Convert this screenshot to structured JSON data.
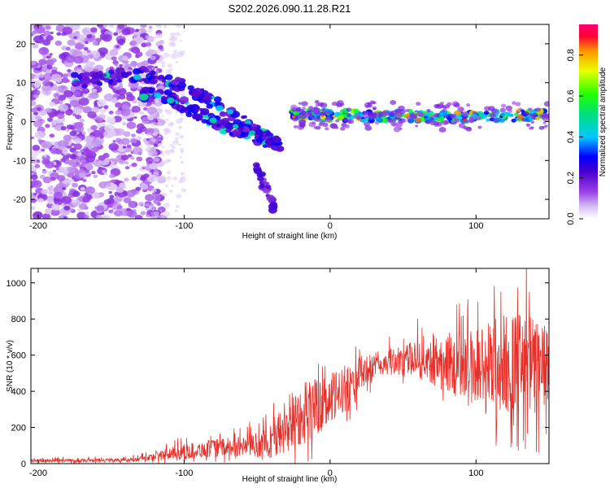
{
  "title": "S202.2026.090.11.28.R21",
  "colors": {
    "snr_line": "#e8302a",
    "frame": "#000000"
  },
  "chart_data": [
    {
      "type": "heatmap",
      "name": "spectrogram",
      "xlabel": "Height of straight line (km)",
      "ylabel": "Frequency (Hz)",
      "xlim": [
        -205,
        150
      ],
      "ylim": [
        -25,
        25
      ],
      "x_ticks": [
        -200,
        -100,
        0,
        100
      ],
      "y_ticks": [
        -20,
        -10,
        0,
        10,
        20
      ],
      "features": [
        {
          "label": "upper branch",
          "points": [
            [
              -175,
              10.5
            ],
            [
              -150,
              11.5
            ],
            [
              -125,
              12
            ],
            [
              -100,
              9
            ],
            [
              -80,
              5
            ],
            [
              -60,
              0
            ],
            [
              -45,
              -4
            ],
            [
              -35,
              -6
            ]
          ]
        },
        {
          "label": "lower branch",
          "points": [
            [
              -130,
              7
            ],
            [
              -110,
              6
            ],
            [
              -95,
              3
            ],
            [
              -80,
              0
            ],
            [
              -65,
              -2
            ],
            [
              -50,
              -4
            ],
            [
              -35,
              -6
            ]
          ]
        },
        {
          "label": "lower tail",
          "points": [
            [
              -50,
              -12
            ],
            [
              -45,
              -16
            ],
            [
              -40,
              -20
            ],
            [
              -38,
              -22
            ]
          ]
        },
        {
          "label": "carrier",
          "points": [
            [
              -25,
              2
            ],
            [
              0,
              1.5
            ],
            [
              50,
              1.5
            ],
            [
              100,
              1.2
            ],
            [
              150,
              1.8
            ]
          ]
        }
      ],
      "colorbar": {
        "label": "Normalized spectral amplitude",
        "ticks": [
          0.0,
          0.2,
          0.4,
          0.6,
          0.8
        ],
        "range": [
          0,
          0.95
        ]
      }
    },
    {
      "type": "line",
      "name": "snr",
      "xlabel": "Height of straight line (km)",
      "ylabel": "SNR (10 * v/v)",
      "xlim": [
        -205,
        150
      ],
      "ylim": [
        0,
        1080
      ],
      "x_ticks": [
        -200,
        -100,
        0,
        100
      ],
      "y_ticks": [
        0,
        200,
        400,
        600,
        800,
        1000
      ],
      "envelope": {
        "x": [
          -205,
          -170,
          -140,
          -125,
          -110,
          -95,
          -80,
          -60,
          -45,
          -35,
          -25,
          -15,
          -5,
          5,
          15,
          25,
          40,
          55,
          65,
          80,
          95,
          105,
          115,
          125,
          135,
          145,
          150
        ],
        "mean": [
          15,
          18,
          20,
          30,
          55,
          70,
          85,
          95,
          110,
          160,
          250,
          300,
          320,
          380,
          450,
          520,
          560,
          580,
          585,
          560,
          540,
          530,
          540,
          560,
          540,
          520,
          520
        ],
        "amp": [
          10,
          10,
          10,
          20,
          35,
          45,
          50,
          55,
          80,
          140,
          180,
          180,
          150,
          140,
          120,
          90,
          70,
          90,
          130,
          170,
          200,
          260,
          300,
          280,
          300,
          270,
          220
        ]
      }
    }
  ]
}
